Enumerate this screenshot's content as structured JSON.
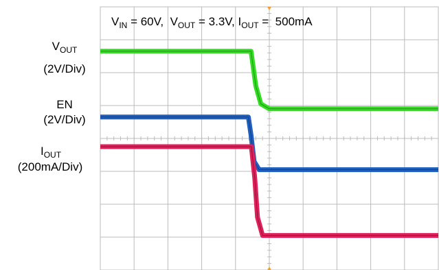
{
  "labels": {
    "vout_main": "V",
    "vout_sub": "OUT",
    "vout_scale": "(2V/Div)",
    "en_main": "EN",
    "en_scale": "(2V/Div)",
    "iout_main": "I",
    "iout_sub": "OUT",
    "iout_scale": "(200mA/Div)"
  },
  "conditions": {
    "vin_main": "V",
    "vin_sub": "IN",
    "vin_val": " = 60V,  ",
    "vout_main": "V",
    "vout_sub": "OUT",
    "vout_val": " = 3.3V, ",
    "iout_main": "I",
    "iout_sub": "OUT",
    "iout_val": " =  500mA"
  },
  "colors": {
    "vout": "#33dd22",
    "en": "#1f5fc0",
    "iout": "#e0205a",
    "grid": "#bbbbbb",
    "trigger": "#f0a030"
  },
  "chart_data": {
    "type": "line",
    "title": "",
    "xlabel": "",
    "ylabel": "",
    "grid": true,
    "divisions": {
      "x": 10,
      "y": 8
    },
    "xlim": [
      0,
      10
    ],
    "ylim": [
      0,
      8
    ],
    "series": [
      {
        "name": "VOUT",
        "x": [
          0,
          4.46,
          4.6,
          4.75,
          5.0,
          10
        ],
        "y": [
          6.65,
          6.65,
          5.6,
          5.05,
          4.9,
          4.9
        ]
      },
      {
        "name": "EN",
        "x": [
          0,
          4.38,
          4.46,
          4.55,
          4.7,
          10
        ],
        "y": [
          4.65,
          4.65,
          4.1,
          3.3,
          3.05,
          3.05
        ]
      },
      {
        "name": "IOUT",
        "x": [
          0,
          4.47,
          4.57,
          4.65,
          4.8,
          10
        ],
        "y": [
          3.75,
          3.75,
          2.8,
          1.6,
          1.05,
          1.05
        ]
      }
    ]
  }
}
